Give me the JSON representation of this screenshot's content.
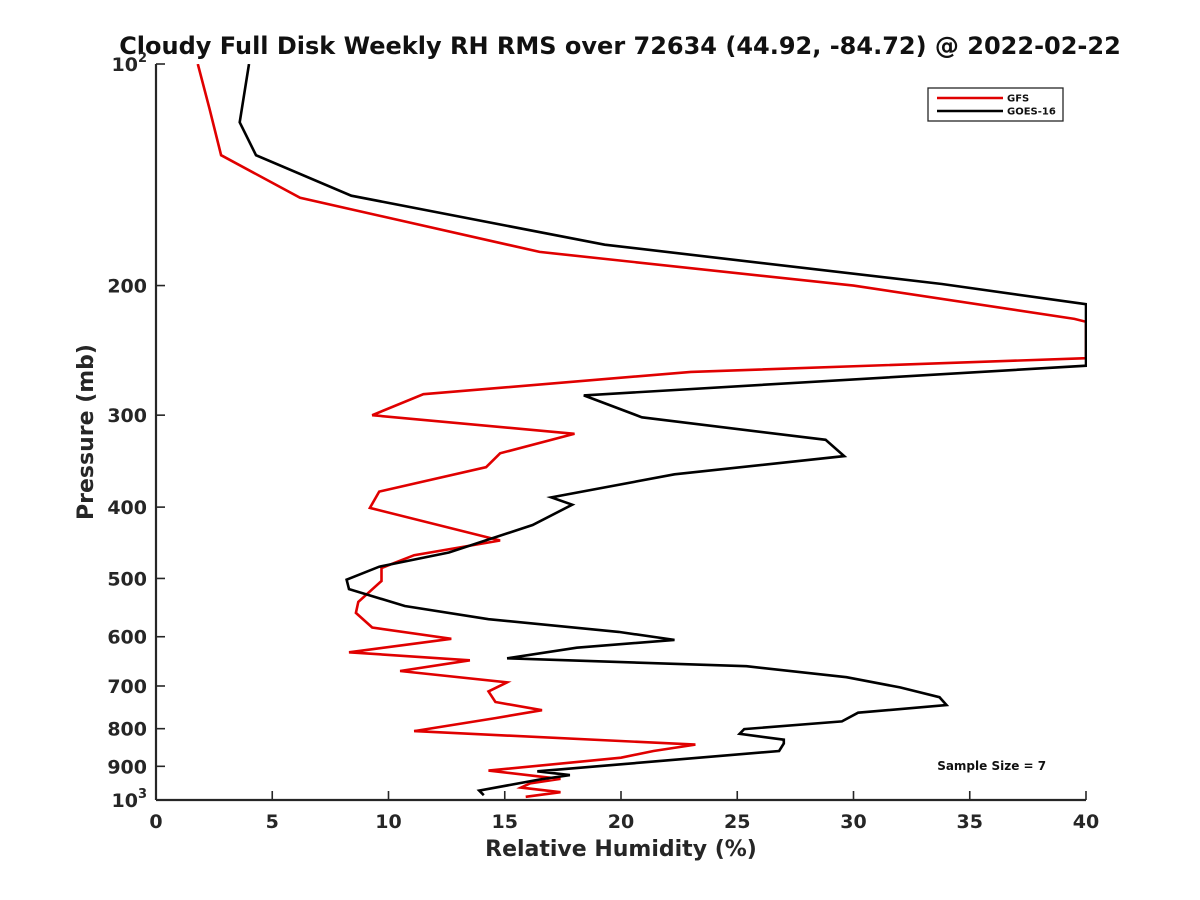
{
  "chart_data": {
    "type": "line",
    "title": "Cloudy Full Disk Weekly RH RMS over 72634 (44.92, -84.72) @ 2022-02-22",
    "xlabel": "Relative Humidity (%)",
    "ylabel": "Pressure (mb)",
    "xlim": [
      0,
      40
    ],
    "ylim": [
      100,
      1000
    ],
    "y_scale": "log",
    "y_reversed": true,
    "x_ticks": [
      0,
      5,
      10,
      15,
      20,
      25,
      30,
      35,
      40
    ],
    "y_ticks": [
      {
        "value": 100,
        "base": "10",
        "exp": "2"
      },
      {
        "value": 200,
        "label": "200"
      },
      {
        "value": 300,
        "label": "300"
      },
      {
        "value": 400,
        "label": "400"
      },
      {
        "value": 500,
        "label": "500"
      },
      {
        "value": 600,
        "label": "600"
      },
      {
        "value": 700,
        "label": "700"
      },
      {
        "value": 800,
        "label": "800"
      },
      {
        "value": 900,
        "label": "900"
      },
      {
        "value": 1000,
        "base": "10",
        "exp": "3"
      }
    ],
    "grid": false,
    "legend_position": "top-right",
    "series": [
      {
        "name": "GFS",
        "color": "#e00000",
        "points": [
          [
            1.8,
            100
          ],
          [
            2.3,
            115
          ],
          [
            2.8,
            133
          ],
          [
            6.2,
            152
          ],
          [
            16.5,
            180
          ],
          [
            30,
            200
          ],
          [
            39.5,
            222
          ],
          [
            40,
            224
          ],
          [
            40,
            251
          ],
          [
            23,
            262
          ],
          [
            11.5,
            281
          ],
          [
            9.3,
            300
          ],
          [
            18,
            318
          ],
          [
            14.8,
            338
          ],
          [
            14.2,
            353
          ],
          [
            9.6,
            381
          ],
          [
            9.2,
            401
          ],
          [
            14.8,
            444
          ],
          [
            11.1,
            465
          ],
          [
            9.7,
            484
          ],
          [
            9.7,
            504
          ],
          [
            8.7,
            538
          ],
          [
            8.6,
            557
          ],
          [
            9.3,
            583
          ],
          [
            12.7,
            604
          ],
          [
            8.3,
            630
          ],
          [
            13.5,
            646
          ],
          [
            10.5,
            668
          ],
          [
            15.1,
            692
          ],
          [
            14.3,
            712
          ],
          [
            14.6,
            736
          ],
          [
            16.6,
            755
          ],
          [
            14.6,
            774
          ],
          [
            11.1,
            806
          ],
          [
            23.2,
            841
          ],
          [
            21.4,
            858
          ],
          [
            20,
            876
          ],
          [
            14.3,
            912
          ],
          [
            17.4,
            936
          ],
          [
            16.1,
            949
          ],
          [
            15.7,
            962
          ],
          [
            17.4,
            976
          ],
          [
            15.9,
            990
          ]
        ]
      },
      {
        "name": "GOES-16",
        "color": "#000000",
        "points": [
          [
            4,
            100
          ],
          [
            3.6,
            120
          ],
          [
            4.3,
            133
          ],
          [
            8.4,
            151
          ],
          [
            19.3,
            176
          ],
          [
            33.8,
            199
          ],
          [
            40,
            212
          ],
          [
            40,
            257
          ],
          [
            18.4,
            282
          ],
          [
            20.9,
            302
          ],
          [
            28.8,
            324
          ],
          [
            29.6,
            341
          ],
          [
            22.3,
            361
          ],
          [
            17,
            388
          ],
          [
            17.9,
            397
          ],
          [
            16.2,
            423
          ],
          [
            12.6,
            461
          ],
          [
            9.6,
            482
          ],
          [
            8.2,
            502
          ],
          [
            8.3,
            517
          ],
          [
            10.7,
            545
          ],
          [
            14.3,
            568
          ],
          [
            19.9,
            591
          ],
          [
            22.3,
            606
          ],
          [
            18.1,
            621
          ],
          [
            15.1,
            642
          ],
          [
            25.4,
            658
          ],
          [
            29.7,
            681
          ],
          [
            32,
            703
          ],
          [
            33.7,
            725
          ],
          [
            34,
            743
          ],
          [
            30.2,
            761
          ],
          [
            29.5,
            782
          ],
          [
            25.3,
            801
          ],
          [
            25.1,
            813
          ],
          [
            27,
            828
          ],
          [
            27,
            838
          ],
          [
            26.8,
            858
          ],
          [
            16.4,
            914
          ],
          [
            17.8,
            925
          ],
          [
            16.5,
            938
          ],
          [
            13.9,
            971
          ],
          [
            14.1,
            985
          ]
        ]
      }
    ],
    "annotations": [
      {
        "text": "Sample Size = 7",
        "x": 33.6,
        "y": 910
      }
    ]
  }
}
